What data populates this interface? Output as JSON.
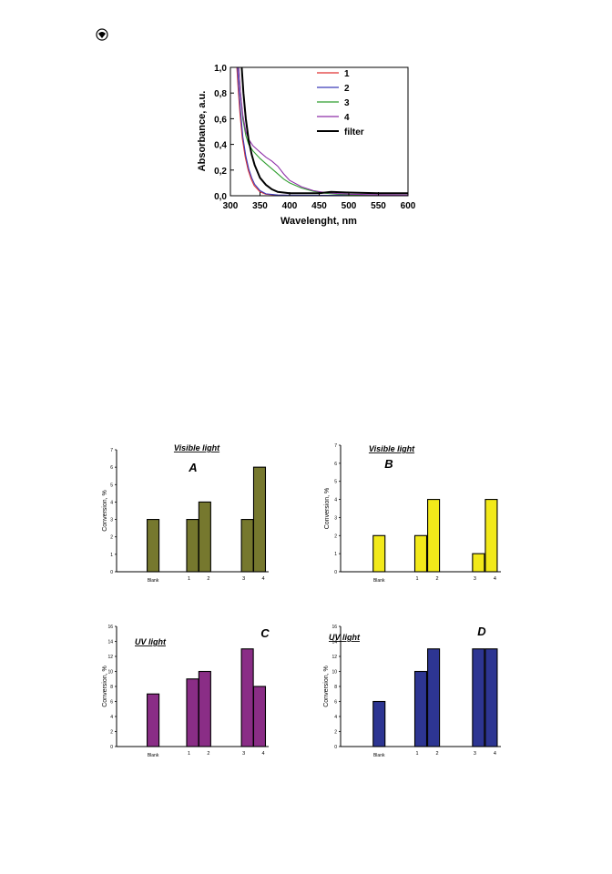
{
  "chart_data": [
    {
      "type": "line",
      "xlabel": "Wavelenght, nm",
      "ylabel": "Absorbance, a.u.",
      "xlim": [
        300,
        600
      ],
      "ylim": [
        0,
        1.0
      ],
      "xticks": [
        "300",
        "350",
        "400",
        "450",
        "500",
        "550",
        "600"
      ],
      "yticks": [
        "0,0",
        "0,2",
        "0,4",
        "0,6",
        "0,8",
        "1,0"
      ],
      "legend_position": "top-right",
      "series": [
        {
          "name": "1",
          "color": "#e03030",
          "x": [
            311,
            313,
            316,
            320,
            325,
            330,
            335,
            340,
            350,
            360,
            380,
            400,
            450,
            500,
            600
          ],
          "y": [
            1.0,
            0.85,
            0.65,
            0.45,
            0.3,
            0.2,
            0.13,
            0.08,
            0.03,
            0.012,
            0.005,
            0.003,
            0.002,
            0.002,
            0.002
          ]
        },
        {
          "name": "2",
          "color": "#3a3ab8",
          "x": [
            312,
            314,
            317,
            321,
            326,
            331,
            336,
            341,
            350,
            360,
            380,
            400,
            450,
            500,
            600
          ],
          "y": [
            1.0,
            0.85,
            0.66,
            0.46,
            0.31,
            0.21,
            0.14,
            0.09,
            0.04,
            0.015,
            0.006,
            0.004,
            0.003,
            0.003,
            0.003
          ]
        },
        {
          "name": "3",
          "color": "#2f9e2f",
          "x": [
            314,
            317,
            321,
            326,
            331,
            338,
            350,
            360,
            375,
            390,
            400,
            420,
            440,
            460,
            480,
            500,
            550,
            600
          ],
          "y": [
            1.0,
            0.8,
            0.6,
            0.47,
            0.4,
            0.35,
            0.29,
            0.25,
            0.19,
            0.13,
            0.1,
            0.06,
            0.035,
            0.02,
            0.012,
            0.008,
            0.005,
            0.004
          ]
        },
        {
          "name": "4",
          "color": "#8e2fa8",
          "x": [
            314,
            317,
            321,
            326,
            331,
            338,
            350,
            360,
            370,
            380,
            390,
            400,
            420,
            440,
            460,
            480,
            500,
            550,
            600
          ],
          "y": [
            1.0,
            0.8,
            0.63,
            0.5,
            0.44,
            0.39,
            0.34,
            0.3,
            0.27,
            0.23,
            0.17,
            0.12,
            0.07,
            0.04,
            0.025,
            0.017,
            0.012,
            0.008,
            0.006
          ]
        },
        {
          "name": "filter",
          "color": "#000000",
          "x": [
            319,
            322,
            326,
            331,
            336,
            341,
            350,
            360,
            370,
            380,
            400,
            430,
            450,
            470,
            500,
            550,
            600
          ],
          "y": [
            1.0,
            0.8,
            0.6,
            0.43,
            0.32,
            0.24,
            0.14,
            0.085,
            0.05,
            0.03,
            0.02,
            0.02,
            0.02,
            0.03,
            0.025,
            0.02,
            0.02
          ]
        }
      ]
    },
    {
      "type": "bar",
      "panel_label": "A",
      "title": "Visible light",
      "ylabel": "Conversion, %",
      "ylim": [
        0,
        7
      ],
      "yticks": [
        "0",
        "1",
        "2",
        "3",
        "4",
        "5",
        "6",
        "7"
      ],
      "color": "#76782e",
      "categories": [
        "Blank",
        "1",
        "2",
        "3",
        "4"
      ],
      "values": [
        3,
        3,
        4,
        3,
        6
      ]
    },
    {
      "type": "bar",
      "panel_label": "B",
      "title": "Visible light",
      "ylabel": "Conversion, %",
      "ylim": [
        0,
        7
      ],
      "yticks": [
        "0",
        "1",
        "2",
        "3",
        "4",
        "5",
        "6",
        "7"
      ],
      "color": "#f2e91a",
      "categories": [
        "Blank",
        "1",
        "2",
        "3",
        "4"
      ],
      "values": [
        2,
        2,
        4,
        1,
        4
      ]
    },
    {
      "type": "bar",
      "panel_label": "C",
      "title": "UV light",
      "ylabel": "Conversion, %",
      "ylim": [
        0,
        16
      ],
      "yticks": [
        "0",
        "2",
        "4",
        "6",
        "8",
        "10",
        "12",
        "14",
        "16"
      ],
      "color": "#8a2d86",
      "categories": [
        "Blank",
        "1",
        "2",
        "3",
        "4"
      ],
      "values": [
        7,
        9,
        10,
        13,
        8
      ]
    },
    {
      "type": "bar",
      "panel_label": "D",
      "title": "UV light",
      "ylabel": "Conversion, %",
      "ylim": [
        0,
        16
      ],
      "yticks": [
        "0",
        "2",
        "4",
        "6",
        "8",
        "10",
        "12",
        "14",
        "16"
      ],
      "color": "#2d3592",
      "categories": [
        "Blank",
        "1",
        "2",
        "3",
        "4"
      ],
      "values": [
        6,
        10,
        13,
        13,
        13
      ]
    }
  ]
}
